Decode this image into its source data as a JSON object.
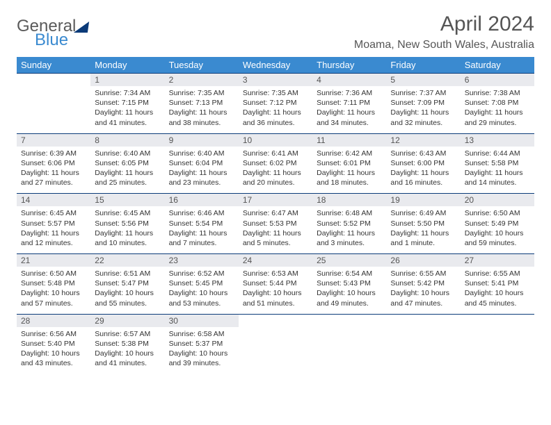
{
  "brand": {
    "word1": "General",
    "word2": "Blue"
  },
  "title": "April 2024",
  "location": "Moama, New South Wales, Australia",
  "dow": [
    "Sunday",
    "Monday",
    "Tuesday",
    "Wednesday",
    "Thursday",
    "Friday",
    "Saturday"
  ],
  "colors": {
    "header_bg": "#3a8ad0",
    "header_text": "#ffffff",
    "rule": "#0a3a78",
    "daynum_bg": "#e9eaee",
    "text": "#333333",
    "title_text": "#555555"
  },
  "weeks": [
    {
      "nums": [
        "",
        "1",
        "2",
        "3",
        "4",
        "5",
        "6"
      ],
      "cells": [
        null,
        {
          "sunrise": "Sunrise: 7:34 AM",
          "sunset": "Sunset: 7:15 PM",
          "day": "Daylight: 11 hours and 41 minutes."
        },
        {
          "sunrise": "Sunrise: 7:35 AM",
          "sunset": "Sunset: 7:13 PM",
          "day": "Daylight: 11 hours and 38 minutes."
        },
        {
          "sunrise": "Sunrise: 7:35 AM",
          "sunset": "Sunset: 7:12 PM",
          "day": "Daylight: 11 hours and 36 minutes."
        },
        {
          "sunrise": "Sunrise: 7:36 AM",
          "sunset": "Sunset: 7:11 PM",
          "day": "Daylight: 11 hours and 34 minutes."
        },
        {
          "sunrise": "Sunrise: 7:37 AM",
          "sunset": "Sunset: 7:09 PM",
          "day": "Daylight: 11 hours and 32 minutes."
        },
        {
          "sunrise": "Sunrise: 7:38 AM",
          "sunset": "Sunset: 7:08 PM",
          "day": "Daylight: 11 hours and 29 minutes."
        }
      ]
    },
    {
      "nums": [
        "7",
        "8",
        "9",
        "10",
        "11",
        "12",
        "13"
      ],
      "cells": [
        {
          "sunrise": "Sunrise: 6:39 AM",
          "sunset": "Sunset: 6:06 PM",
          "day": "Daylight: 11 hours and 27 minutes."
        },
        {
          "sunrise": "Sunrise: 6:40 AM",
          "sunset": "Sunset: 6:05 PM",
          "day": "Daylight: 11 hours and 25 minutes."
        },
        {
          "sunrise": "Sunrise: 6:40 AM",
          "sunset": "Sunset: 6:04 PM",
          "day": "Daylight: 11 hours and 23 minutes."
        },
        {
          "sunrise": "Sunrise: 6:41 AM",
          "sunset": "Sunset: 6:02 PM",
          "day": "Daylight: 11 hours and 20 minutes."
        },
        {
          "sunrise": "Sunrise: 6:42 AM",
          "sunset": "Sunset: 6:01 PM",
          "day": "Daylight: 11 hours and 18 minutes."
        },
        {
          "sunrise": "Sunrise: 6:43 AM",
          "sunset": "Sunset: 6:00 PM",
          "day": "Daylight: 11 hours and 16 minutes."
        },
        {
          "sunrise": "Sunrise: 6:44 AM",
          "sunset": "Sunset: 5:58 PM",
          "day": "Daylight: 11 hours and 14 minutes."
        }
      ]
    },
    {
      "nums": [
        "14",
        "15",
        "16",
        "17",
        "18",
        "19",
        "20"
      ],
      "cells": [
        {
          "sunrise": "Sunrise: 6:45 AM",
          "sunset": "Sunset: 5:57 PM",
          "day": "Daylight: 11 hours and 12 minutes."
        },
        {
          "sunrise": "Sunrise: 6:45 AM",
          "sunset": "Sunset: 5:56 PM",
          "day": "Daylight: 11 hours and 10 minutes."
        },
        {
          "sunrise": "Sunrise: 6:46 AM",
          "sunset": "Sunset: 5:54 PM",
          "day": "Daylight: 11 hours and 7 minutes."
        },
        {
          "sunrise": "Sunrise: 6:47 AM",
          "sunset": "Sunset: 5:53 PM",
          "day": "Daylight: 11 hours and 5 minutes."
        },
        {
          "sunrise": "Sunrise: 6:48 AM",
          "sunset": "Sunset: 5:52 PM",
          "day": "Daylight: 11 hours and 3 minutes."
        },
        {
          "sunrise": "Sunrise: 6:49 AM",
          "sunset": "Sunset: 5:50 PM",
          "day": "Daylight: 11 hours and 1 minute."
        },
        {
          "sunrise": "Sunrise: 6:50 AM",
          "sunset": "Sunset: 5:49 PM",
          "day": "Daylight: 10 hours and 59 minutes."
        }
      ]
    },
    {
      "nums": [
        "21",
        "22",
        "23",
        "24",
        "25",
        "26",
        "27"
      ],
      "cells": [
        {
          "sunrise": "Sunrise: 6:50 AM",
          "sunset": "Sunset: 5:48 PM",
          "day": "Daylight: 10 hours and 57 minutes."
        },
        {
          "sunrise": "Sunrise: 6:51 AM",
          "sunset": "Sunset: 5:47 PM",
          "day": "Daylight: 10 hours and 55 minutes."
        },
        {
          "sunrise": "Sunrise: 6:52 AM",
          "sunset": "Sunset: 5:45 PM",
          "day": "Daylight: 10 hours and 53 minutes."
        },
        {
          "sunrise": "Sunrise: 6:53 AM",
          "sunset": "Sunset: 5:44 PM",
          "day": "Daylight: 10 hours and 51 minutes."
        },
        {
          "sunrise": "Sunrise: 6:54 AM",
          "sunset": "Sunset: 5:43 PM",
          "day": "Daylight: 10 hours and 49 minutes."
        },
        {
          "sunrise": "Sunrise: 6:55 AM",
          "sunset": "Sunset: 5:42 PM",
          "day": "Daylight: 10 hours and 47 minutes."
        },
        {
          "sunrise": "Sunrise: 6:55 AM",
          "sunset": "Sunset: 5:41 PM",
          "day": "Daylight: 10 hours and 45 minutes."
        }
      ]
    },
    {
      "nums": [
        "28",
        "29",
        "30",
        "",
        "",
        "",
        ""
      ],
      "cells": [
        {
          "sunrise": "Sunrise: 6:56 AM",
          "sunset": "Sunset: 5:40 PM",
          "day": "Daylight: 10 hours and 43 minutes."
        },
        {
          "sunrise": "Sunrise: 6:57 AM",
          "sunset": "Sunset: 5:38 PM",
          "day": "Daylight: 10 hours and 41 minutes."
        },
        {
          "sunrise": "Sunrise: 6:58 AM",
          "sunset": "Sunset: 5:37 PM",
          "day": "Daylight: 10 hours and 39 minutes."
        },
        null,
        null,
        null,
        null
      ]
    }
  ]
}
